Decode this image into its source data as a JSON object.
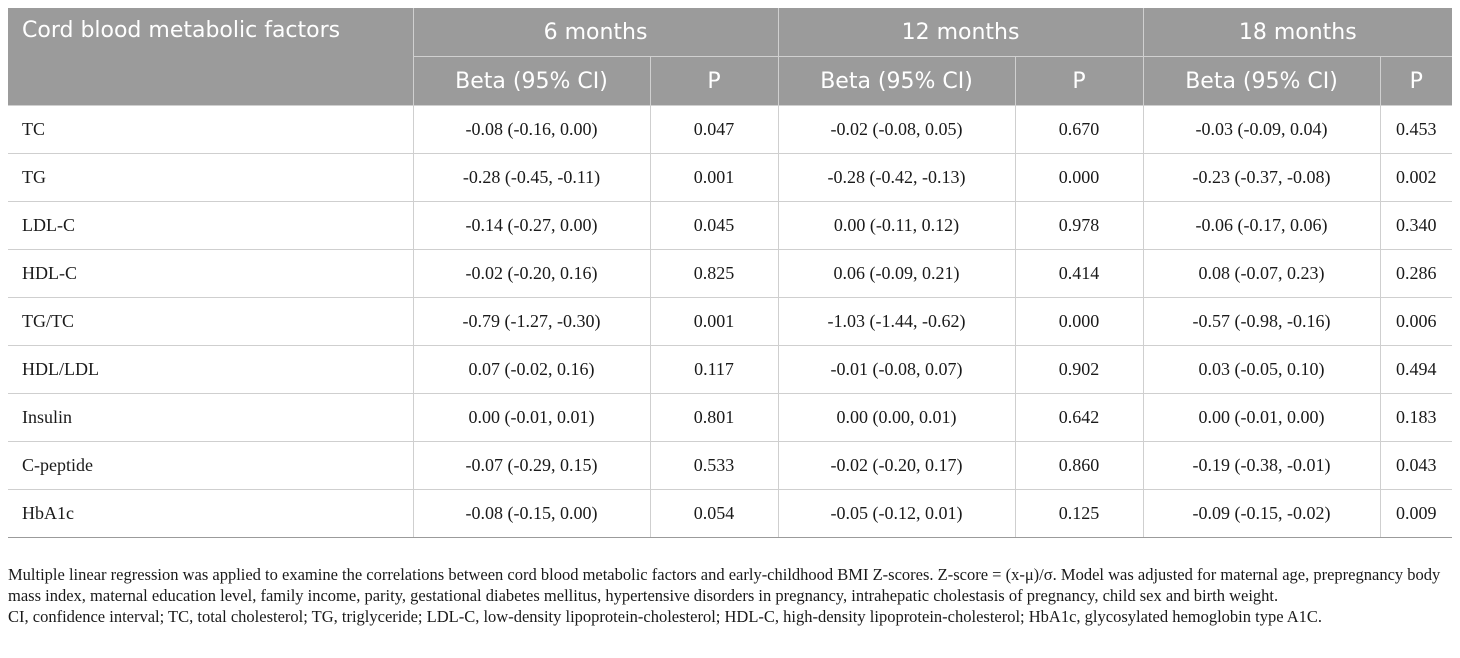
{
  "header": {
    "factor_label": "Cord blood metabolic factors",
    "periods": [
      "6 months",
      "12 months",
      "18 months"
    ],
    "beta_label": "Beta (95% CI)",
    "p_label": "P"
  },
  "rows": [
    {
      "factor": "TC",
      "b6": "-0.08 (-0.16, 0.00)",
      "p6": "0.047",
      "b12": "-0.02 (-0.08, 0.05)",
      "p12": "0.670",
      "b18": "-0.03 (-0.09, 0.04)",
      "p18": "0.453"
    },
    {
      "factor": "TG",
      "b6": "-0.28 (-0.45, -0.11)",
      "p6": "0.001",
      "b12": "-0.28 (-0.42, -0.13)",
      "p12": "0.000",
      "b18": "-0.23 (-0.37, -0.08)",
      "p18": "0.002"
    },
    {
      "factor": "LDL-C",
      "b6": "-0.14 (-0.27, 0.00)",
      "p6": "0.045",
      "b12": "0.00 (-0.11, 0.12)",
      "p12": "0.978",
      "b18": "-0.06 (-0.17, 0.06)",
      "p18": "0.340"
    },
    {
      "factor": "HDL-C",
      "b6": "-0.02 (-0.20, 0.16)",
      "p6": "0.825",
      "b12": "0.06 (-0.09, 0.21)",
      "p12": "0.414",
      "b18": "0.08 (-0.07, 0.23)",
      "p18": "0.286"
    },
    {
      "factor": "TG/TC",
      "b6": "-0.79 (-1.27, -0.30)",
      "p6": "0.001",
      "b12": "-1.03 (-1.44, -0.62)",
      "p12": "0.000",
      "b18": "-0.57 (-0.98, -0.16)",
      "p18": "0.006"
    },
    {
      "factor": "HDL/LDL",
      "b6": "0.07 (-0.02, 0.16)",
      "p6": "0.117",
      "b12": "-0.01 (-0.08, 0.07)",
      "p12": "0.902",
      "b18": "0.03 (-0.05, 0.10)",
      "p18": "0.494"
    },
    {
      "factor": "Insulin",
      "b6": "0.00 (-0.01, 0.01)",
      "p6": "0.801",
      "b12": "0.00 (0.00, 0.01)",
      "p12": "0.642",
      "b18": "0.00 (-0.01, 0.00)",
      "p18": "0.183"
    },
    {
      "factor": "C-peptide",
      "b6": "-0.07 (-0.29, 0.15)",
      "p6": "0.533",
      "b12": "-0.02 (-0.20, 0.17)",
      "p12": "0.860",
      "b18": "-0.19 (-0.38, -0.01)",
      "p18": "0.043"
    },
    {
      "factor": "HbA1c",
      "b6": "-0.08 (-0.15, 0.00)",
      "p6": "0.054",
      "b12": "-0.05 (-0.12, 0.01)",
      "p12": "0.125",
      "b18": "-0.09 (-0.15, -0.02)",
      "p18": "0.009"
    }
  ],
  "footnotes": {
    "note1": "Multiple linear regression was applied to examine the correlations between cord blood metabolic factors and early-childhood BMI Z-scores. Z-score = (x-μ)/σ. Model was adjusted for maternal age, prepregnancy body mass index, maternal education level, family income, parity, gestational diabetes mellitus, hypertensive disorders in pregnancy, intrahepatic cholestasis of pregnancy, child sex and birth weight.",
    "note2": "CI, confidence interval; TC, total cholesterol; TG, triglyceride; LDL-C, low-density lipoprotein-cholesterol; HDL-C, high-density lipoprotein-cholesterol; HbA1c, glycosylated hemoglobin type A1C."
  }
}
